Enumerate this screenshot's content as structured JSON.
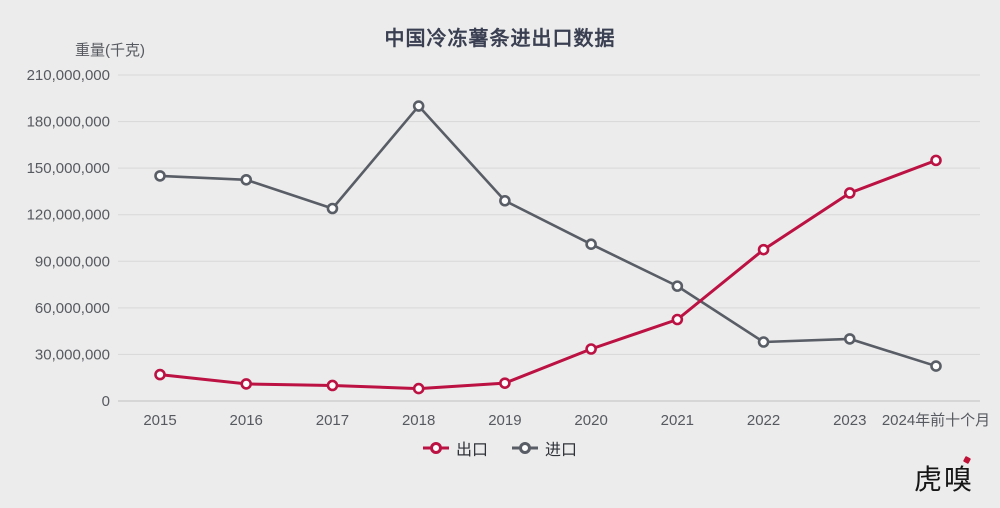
{
  "title": "中国冷冻薯条进出口数据",
  "y_axis_unit": "重量(千克)",
  "logo_text": "虎嗅",
  "colors": {
    "background": "#ececec",
    "title_text": "#3a4052",
    "tick_text": "#56595f",
    "grid_line": "#d8d8d8",
    "zero_axis_line": "#c0c0c0",
    "legend_text": "#2f3239",
    "marker_fill": "#fdfdfd",
    "logo_text_color": "#161616",
    "logo_accent": "#c01137"
  },
  "chart_data": {
    "type": "line",
    "title": "中国冷冻薯条进出口数据",
    "xlabel": "",
    "ylabel": "重量(千克)",
    "categories": [
      "2015",
      "2016",
      "2017",
      "2018",
      "2019",
      "2020",
      "2021",
      "2022",
      "2023",
      "2024年前十个月"
    ],
    "series": [
      {
        "name": "出口",
        "color": "#bb1243",
        "values": [
          17000000,
          11000000,
          10000000,
          8000000,
          11500000,
          33500000,
          52500000,
          97500000,
          134000000,
          155000000
        ]
      },
      {
        "name": "进口",
        "color": "#585d66",
        "values": [
          145000000,
          142500000,
          124000000,
          190000000,
          129000000,
          101000000,
          74000000,
          38000000,
          40000000,
          22500000
        ]
      }
    ],
    "ylim": [
      0,
      210000000
    ],
    "y_tick_values": [
      210000000,
      180000000,
      150000000,
      120000000,
      90000000,
      60000000,
      30000000,
      0
    ],
    "y_tick_labels": [
      "210,000,000",
      "180,000,000",
      "150,000,000",
      "120,000,000",
      "90,000,000",
      "60,000,000",
      "30,000,000",
      "0"
    ],
    "grid": true,
    "legend_position": "bottom"
  }
}
